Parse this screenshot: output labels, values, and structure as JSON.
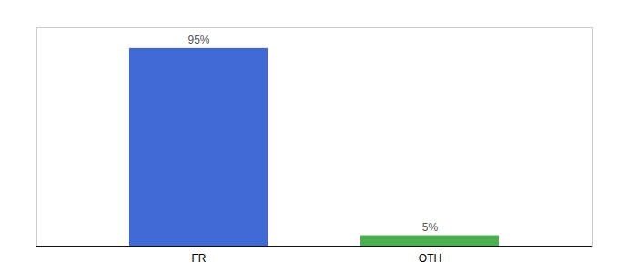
{
  "chart_data": {
    "type": "bar",
    "categories": [
      "FR",
      "OTH"
    ],
    "values": [
      95,
      5
    ],
    "value_labels": [
      "95%",
      "5%"
    ],
    "colors": [
      "#4169d4",
      "#4caf50"
    ],
    "ylim": [
      0,
      105
    ],
    "data_labels": true,
    "tick_labels": "x"
  }
}
